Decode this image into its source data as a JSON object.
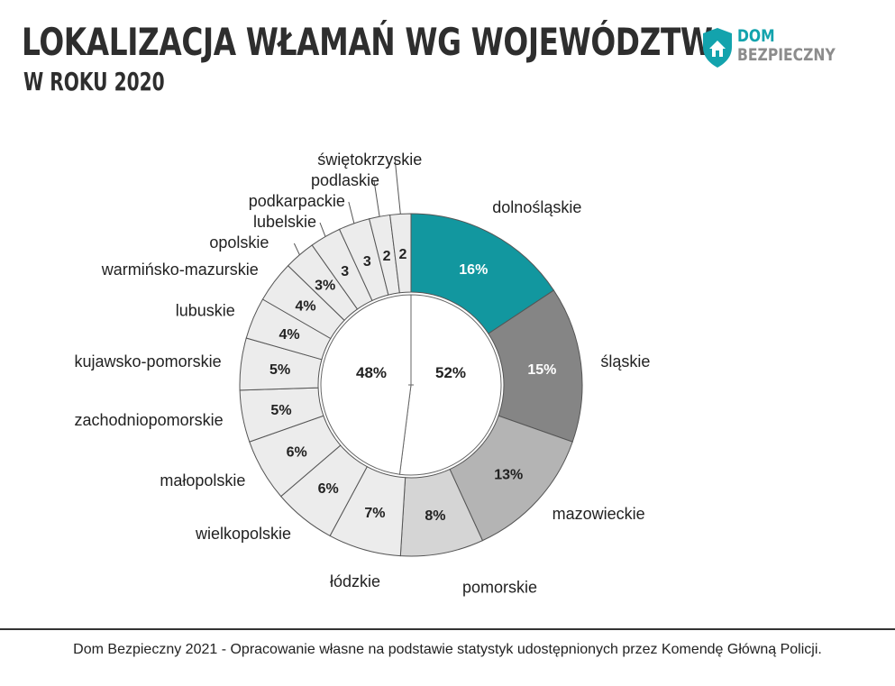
{
  "header": {
    "title": "LOKALIZACJA WŁAMAŃ WG WOJEWÓDZTW",
    "subtitle": "W ROKU 2020"
  },
  "logo": {
    "line1": "DOM",
    "line2": "BEZPIECZNY",
    "icon": "shield-house-icon",
    "colors": {
      "primary": "#13a3ad",
      "secondary": "#8c8c8c"
    }
  },
  "footer": {
    "source": "Dom Bezpieczny 2021 - Opracowanie własne na podstawie statystyk udostępnionych przez Komendę Główną Policji."
  },
  "chart_data": {
    "type": "pie",
    "title": "LOKALIZACJA WŁAMAŃ WG WOJEWÓDZTW",
    "subtitle": "W ROKU 2020",
    "unit": "%",
    "outer_ring": {
      "categories": [
        "dolnośląskie",
        "śląskie",
        "mazowieckie",
        "pomorskie",
        "łódzkie",
        "wielkopolskie",
        "małopolskie",
        "zachodniopomorskie",
        "kujawsko-pomorskie",
        "lubuskie",
        "warmińsko-mazurskie",
        "opolskie",
        "lubelskie",
        "podkarpackie",
        "podlaskie",
        "świętokrzyskie"
      ],
      "values": [
        16,
        15,
        13,
        8,
        7,
        6,
        6,
        5,
        5,
        4,
        4,
        3,
        3,
        3,
        2,
        2
      ],
      "value_labels": [
        "16%",
        "15%",
        "13%",
        "8%",
        "7%",
        "6%",
        "6%",
        "5%",
        "5%",
        "4%",
        "4%",
        "3%",
        "3",
        "3",
        "2",
        "2"
      ],
      "colors": [
        "#12979f",
        "#858585",
        "#b4b4b4",
        "#d5d5d5",
        "#ececec",
        "#ececec",
        "#ececec",
        "#ececec",
        "#ececec",
        "#ececec",
        "#ececec",
        "#ececec",
        "#ececec",
        "#ececec",
        "#ececec",
        "#ececec"
      ],
      "value_label_colors": [
        "#ffffff",
        "#ffffff",
        "#222222",
        "#222222",
        "#222222",
        "#222222",
        "#222222",
        "#222222",
        "#222222",
        "#222222",
        "#222222",
        "#222222",
        "#222222",
        "#222222",
        "#222222",
        "#222222"
      ]
    },
    "inner_pie": {
      "values": [
        52,
        48
      ],
      "labels": [
        "52%",
        "48%"
      ],
      "colors": [
        "#ffffff",
        "#ffffff"
      ]
    }
  }
}
